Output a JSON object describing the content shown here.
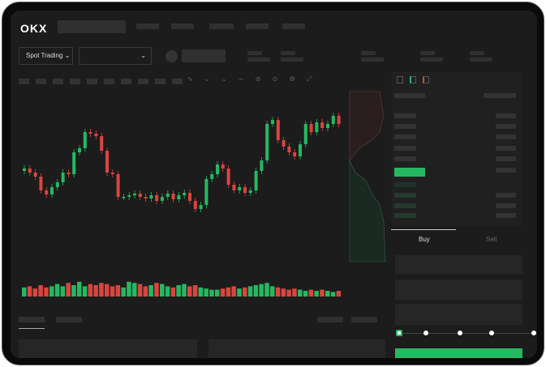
{
  "header": {
    "logo": "OKX",
    "mode_select": "Spot Trading",
    "pair_select": ""
  },
  "trade_panel": {
    "tabs": [
      "Buy",
      "Sell"
    ],
    "active_tab": "Buy",
    "slider_percent": 0
  },
  "colors": {
    "up": "#26b861",
    "down": "#d9453f",
    "accent": "#26b861"
  },
  "icons": [
    "chevron-down-icon",
    "order-book-both-icon",
    "order-book-buy-icon",
    "order-book-sell-icon",
    "indicator-icon",
    "draw-icon",
    "settings-icon",
    "fullscreen-icon"
  ],
  "chart_data": {
    "type": "candlestick",
    "open": [
      92,
      95,
      90,
      85,
      68,
      63,
      72,
      78,
      90,
      88,
      115,
      120,
      140,
      138,
      135,
      117,
      90,
      88,
      60,
      60,
      62,
      64,
      60,
      58,
      62,
      55,
      60,
      64,
      57,
      62,
      65,
      55,
      45,
      50,
      82,
      88,
      100,
      95,
      75,
      68,
      72,
      65,
      68,
      92,
      105,
      150,
      155,
      130,
      122,
      115,
      110,
      125,
      150,
      140,
      152,
      145,
      150,
      160
    ],
    "close": [
      95,
      90,
      85,
      68,
      63,
      72,
      78,
      90,
      88,
      115,
      120,
      140,
      138,
      135,
      117,
      90,
      88,
      60,
      60,
      62,
      64,
      60,
      58,
      62,
      55,
      60,
      64,
      57,
      62,
      65,
      55,
      45,
      50,
      82,
      88,
      100,
      95,
      75,
      68,
      72,
      65,
      68,
      92,
      105,
      150,
      155,
      130,
      122,
      115,
      110,
      125,
      150,
      140,
      152,
      145,
      150,
      160,
      150
    ],
    "volume": [
      8,
      9,
      7,
      10,
      8,
      9,
      11,
      9,
      12,
      10,
      13,
      9,
      11,
      10,
      12,
      11,
      9,
      10,
      8,
      13,
      12,
      11,
      9,
      10,
      12,
      11,
      9,
      8,
      10,
      11,
      9,
      10,
      8,
      7,
      6,
      6,
      7,
      8,
      9,
      7,
      8,
      9,
      10,
      11,
      12,
      9,
      8,
      7,
      6,
      7,
      6,
      5,
      6,
      5,
      6,
      5,
      4,
      5
    ]
  }
}
